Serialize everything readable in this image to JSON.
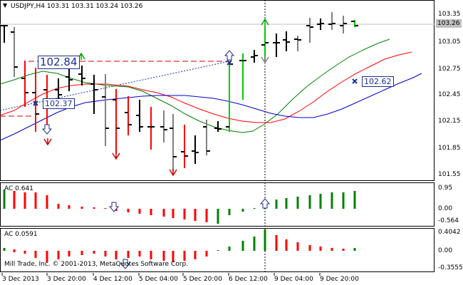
{
  "main": {
    "symbol_line": "USDJPY,H4  103.31 103.31 103.24 103.26",
    "current_price": "103.26",
    "price_ticks": [
      "103.35",
      "103.05",
      "102.75",
      "102.45",
      "102.15",
      "101.85",
      "101.55"
    ],
    "annotations": [
      {
        "label": "102.84",
        "name": "price-label-102-84"
      },
      {
        "label": "102.37",
        "name": "price-label-102-37"
      },
      {
        "label": "102.62",
        "name": "price-label-102-62"
      }
    ]
  },
  "ac1": {
    "title": "AC 0.641",
    "ticks": [
      "0.95",
      "0.00",
      "-0.564"
    ]
  },
  "ac2": {
    "title": "AC 0.0591",
    "ticks": [
      "0.4042",
      "0.00",
      "-0.3555"
    ]
  },
  "watermark": "Mill Trade, Inc. © 2001-2013, MetaQuotes Software Corp.",
  "x_axis": [
    "3 Dec 2013",
    "3 Dec 20:00",
    "4 Dec 12:00",
    "5 Dec 04:00",
    "5 Dec 20:00",
    "6 Dec 12:00",
    "9 Dec 04:00",
    "9 Dec 20:00"
  ],
  "colors": {
    "bull_green": "#00cc00",
    "bear_red": "#ff0000",
    "ma_green": "#008000",
    "ma_red": "#ff0000",
    "ma_blue": "#0000cc",
    "annotation_blue": "#1c2e8f",
    "grid": "#c0c0c0"
  }
}
